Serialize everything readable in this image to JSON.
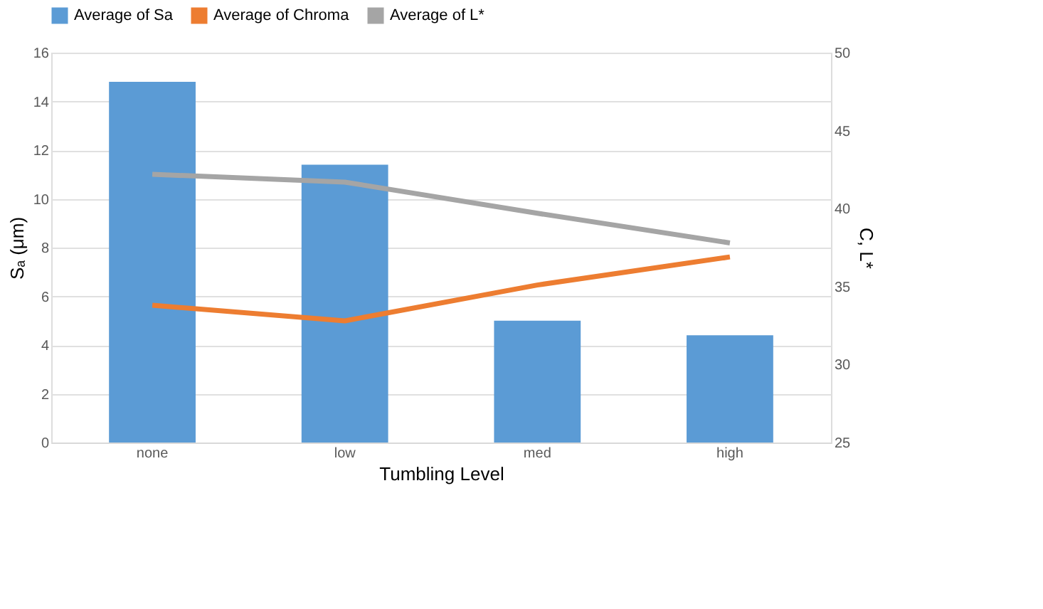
{
  "chart_data": {
    "type": "bar",
    "xlabel": "Tumbling Level",
    "ylabel": "Sₐ (μm)",
    "y2label": "C, L*",
    "categories": [
      "none",
      "low",
      "med",
      "high"
    ],
    "series": [
      {
        "name": "Average of Sa",
        "color": "#5b9bd5",
        "values": [
          14.8,
          11.4,
          5.0,
          4.4
        ]
      },
      {
        "name": "Average of Chroma",
        "type": "line",
        "axis": "y2",
        "color": "#ed7d31",
        "values": [
          33.8,
          32.8,
          35.1,
          36.9
        ]
      },
      {
        "name": "Average of L*",
        "type": "line",
        "axis": "y2",
        "color": "#a5a5a5",
        "values": [
          42.2,
          41.7,
          39.7,
          37.8
        ]
      }
    ],
    "ylim": [
      0,
      16
    ],
    "yticks": [
      0,
      2,
      4,
      6,
      8,
      10,
      12,
      14,
      16
    ],
    "y2lim": [
      25,
      50
    ],
    "y2ticks": [
      25,
      30,
      35,
      40,
      45,
      50
    ],
    "grid": "y",
    "legend": "top",
    "marker": "none",
    "line_style": "solid"
  }
}
